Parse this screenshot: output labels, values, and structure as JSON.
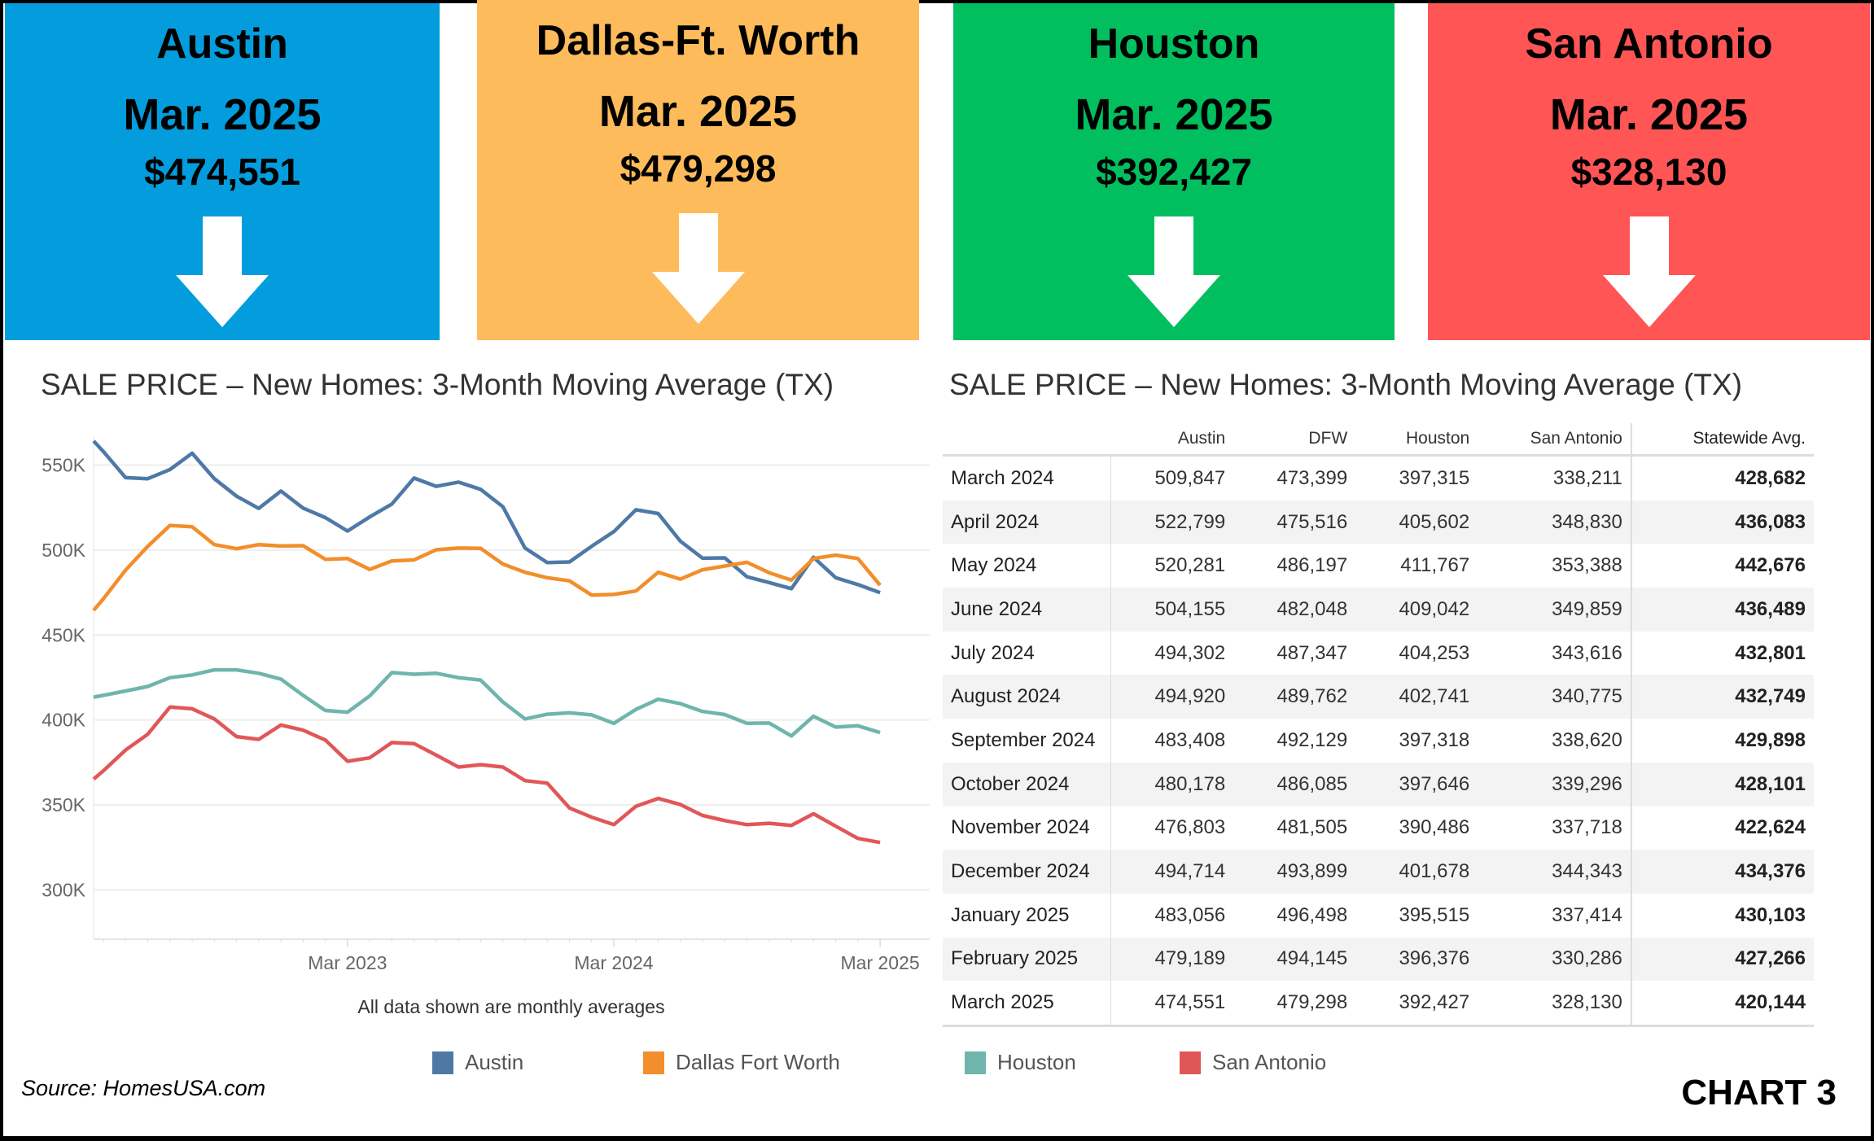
{
  "header_cards": [
    {
      "city": "Austin",
      "date": "Mar. 2025",
      "price": "$474,551",
      "color": "#039DDD",
      "icon": "down-arrow-icon"
    },
    {
      "city": "Dallas-Ft. Worth",
      "date": "Mar. 2025",
      "price": "$479,298",
      "color": "#FDBB5C",
      "icon": "down-arrow-icon"
    },
    {
      "city": "Houston",
      "date": "Mar. 2025",
      "price": "$392,427",
      "color": "#01BF5E",
      "icon": "down-arrow-icon"
    },
    {
      "city": "San Antonio",
      "date": "Mar. 2025",
      "price": "$328,130",
      "color": "#FF5555",
      "icon": "down-arrow-icon"
    }
  ],
  "chart_data": [
    {
      "type": "line",
      "title": "SALE PRICE – New Homes: 3-Month Moving Average (TX)",
      "note": "All data shown are monthly averages",
      "x": [
        "Apr 2022",
        "May 2022",
        "Jun 2022",
        "Jul 2022",
        "Aug 2022",
        "Sep 2022",
        "Oct 2022",
        "Nov 2022",
        "Dec 2022",
        "Jan 2023",
        "Feb 2023",
        "Mar 2023",
        "Apr 2023",
        "May 2023",
        "Jun 2023",
        "Jul 2023",
        "Aug 2023",
        "Sep 2023",
        "Oct 2023",
        "Nov 2023",
        "Dec 2023",
        "Jan 2024",
        "Feb 2024",
        "Mar 2024",
        "Apr 2024",
        "May 2024",
        "Jun 2024",
        "Jul 2024",
        "Aug 2024",
        "Sep 2024",
        "Oct 2024",
        "Nov 2024",
        "Dec 2024",
        "Jan 2025",
        "Feb 2025",
        "Mar 2025"
      ],
      "x_ticks": [
        "Mar 2023",
        "Mar 2024",
        "Mar 2025"
      ],
      "y_ticks": [
        300000,
        350000,
        400000,
        450000,
        500000,
        550000
      ],
      "y_tick_labels": [
        "300K",
        "350K",
        "400K",
        "450K",
        "500K",
        "550K"
      ],
      "ylim": [
        271000,
        567000
      ],
      "grid": true,
      "legend_position": "bottom",
      "series": [
        {
          "name": "Austin",
          "color": "#4E79A7",
          "values": [
            558000,
            542600,
            542000,
            547400,
            557000,
            542000,
            531700,
            524500,
            534700,
            524700,
            519100,
            511200,
            519500,
            527100,
            542400,
            537500,
            540000,
            535700,
            525500,
            501200,
            492600,
            493000,
            502200,
            510800,
            523700,
            521500,
            505200,
            495200,
            495400,
            484300,
            480900,
            477300,
            495800,
            483700,
            479700,
            474900
          ]
        },
        {
          "name": "Dallas Fort Worth",
          "color": "#F28E2B",
          "values": [
            471300,
            488200,
            502200,
            514500,
            513700,
            503200,
            500800,
            503200,
            502400,
            502600,
            494600,
            495000,
            488600,
            493600,
            494200,
            500200,
            501200,
            501000,
            491800,
            486900,
            483700,
            481900,
            473500,
            473900,
            475900,
            486900,
            482900,
            488400,
            490600,
            492800,
            486700,
            482300,
            495000,
            497000,
            495000,
            479300
          ]
        },
        {
          "name": "Houston",
          "color": "#6FB5AC",
          "values": [
            414500,
            417100,
            419700,
            424900,
            426500,
            429500,
            429500,
            427500,
            424100,
            414500,
            405600,
            404600,
            414100,
            427900,
            426900,
            427500,
            424900,
            423500,
            410600,
            400600,
            403400,
            404200,
            403000,
            398000,
            406200,
            412200,
            409600,
            405000,
            403200,
            398000,
            398200,
            390600,
            402200,
            395800,
            396600,
            392600
          ]
        },
        {
          "name": "San Antonio",
          "color": "#E15759",
          "values": [
            370100,
            382300,
            391600,
            407600,
            406600,
            400600,
            390200,
            388600,
            397000,
            394000,
            388200,
            375700,
            377700,
            386700,
            386100,
            379300,
            372300,
            373700,
            372300,
            364300,
            362800,
            348200,
            342800,
            338400,
            349200,
            353800,
            350200,
            343800,
            340800,
            338400,
            339200,
            337900,
            344800,
            337500,
            330300,
            327900
          ]
        }
      ]
    },
    {
      "type": "table",
      "title": "SALE PRICE – New Homes: 3-Month Moving Average (TX)",
      "columns": [
        "",
        "Austin",
        "DFW",
        "Houston",
        "San Antonio",
        "Statewide Avg."
      ],
      "rows": [
        [
          "March 2024",
          "509,847",
          "473,399",
          "397,315",
          "338,211",
          "428,682"
        ],
        [
          "April 2024",
          "522,799",
          "475,516",
          "405,602",
          "348,830",
          "436,083"
        ],
        [
          "May 2024",
          "520,281",
          "486,197",
          "411,767",
          "353,388",
          "442,676"
        ],
        [
          "June 2024",
          "504,155",
          "482,048",
          "409,042",
          "349,859",
          "436,489"
        ],
        [
          "July 2024",
          "494,302",
          "487,347",
          "404,253",
          "343,616",
          "432,801"
        ],
        [
          "August 2024",
          "494,920",
          "489,762",
          "402,741",
          "340,775",
          "432,749"
        ],
        [
          "September 2024",
          "483,408",
          "492,129",
          "397,318",
          "338,620",
          "429,898"
        ],
        [
          "October 2024",
          "480,178",
          "486,085",
          "397,646",
          "339,296",
          "428,101"
        ],
        [
          "November 2024",
          "476,803",
          "481,505",
          "390,486",
          "337,718",
          "422,624"
        ],
        [
          "December 2024",
          "494,714",
          "493,899",
          "401,678",
          "344,343",
          "434,376"
        ],
        [
          "January 2025",
          "483,056",
          "496,498",
          "395,515",
          "337,414",
          "430,103"
        ],
        [
          "February 2025",
          "479,189",
          "494,145",
          "396,376",
          "330,286",
          "427,266"
        ],
        [
          "March 2025",
          "474,551",
          "479,298",
          "392,427",
          "328,130",
          "420,144"
        ]
      ]
    }
  ],
  "footer": {
    "source": "Source: HomesUSA.com",
    "chart_label": "CHART 3"
  }
}
